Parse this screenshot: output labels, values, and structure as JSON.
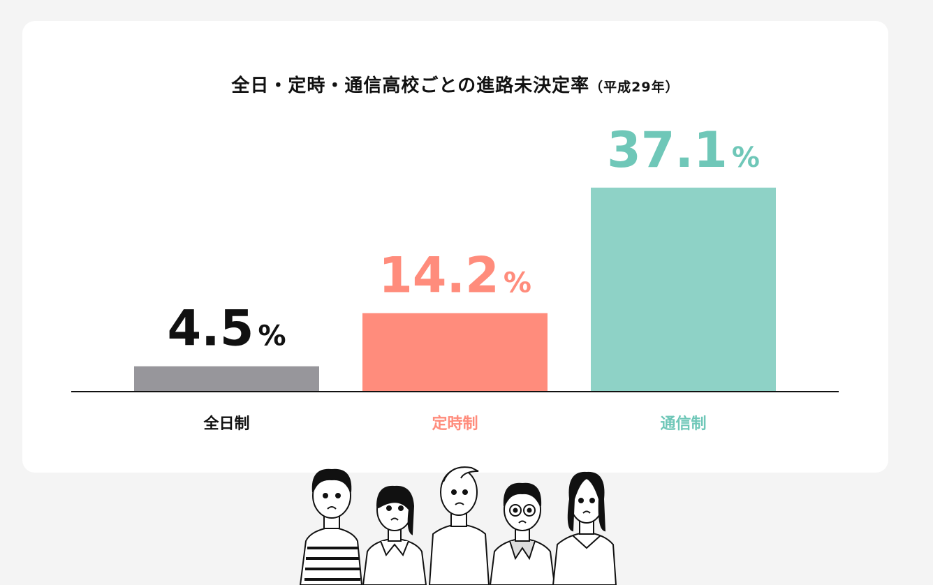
{
  "chart_data": {
    "type": "bar",
    "title": "全日・定時・通信高校ごとの進路未決定率",
    "subtitle": "（平成29年）",
    "categories": [
      "全日制",
      "定時制",
      "通信制"
    ],
    "values": [
      4.5,
      14.2,
      37.1
    ],
    "data_labels": [
      "4.5",
      "14.2",
      "37.1"
    ],
    "unit": "%",
    "colors": [
      "#97969b",
      "#ff8c7c",
      "#8ed2c6"
    ],
    "label_colors": [
      "#111111",
      "#ff8c7c",
      "#6fc7b8"
    ],
    "category_colors": [
      "#111111",
      "#ff8c7c",
      "#6fc7b8"
    ],
    "ylim": [
      0,
      40
    ],
    "grid": false,
    "legend": "none"
  }
}
